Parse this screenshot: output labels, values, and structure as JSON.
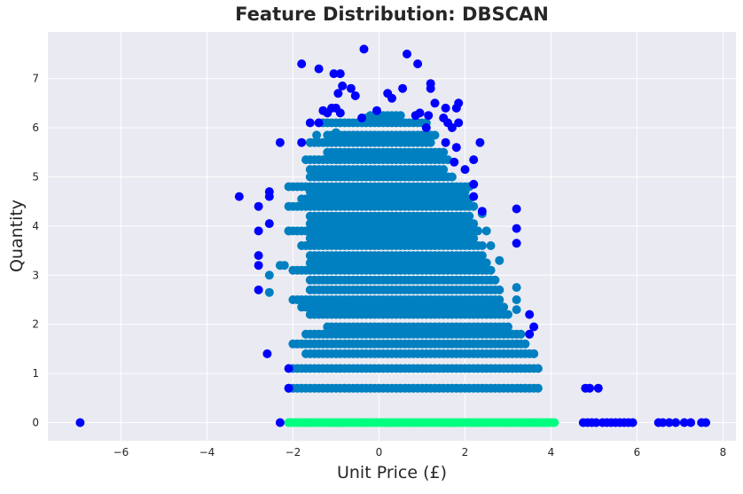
{
  "chart_data": {
    "type": "scatter",
    "title": "Feature Distribution: DBSCAN",
    "xlabel": "Unit Price (£)",
    "ylabel": "Quantity",
    "xlim": [
      -7.7,
      8.3
    ],
    "ylim": [
      -0.37,
      7.95
    ],
    "xticks": [
      -6,
      -4,
      -2,
      0,
      2,
      4,
      6,
      8
    ],
    "yticks": [
      0,
      1,
      2,
      3,
      4,
      5,
      6,
      7
    ],
    "grid": true,
    "background": "#EAEAF2",
    "legend": "none",
    "clusters": [
      {
        "color": "#0000FF",
        "points": [
          [
            -6.95,
            0
          ],
          [
            -2.3,
            0
          ],
          [
            4.75,
            0
          ],
          [
            4.85,
            0
          ],
          [
            4.95,
            0
          ],
          [
            5.05,
            0
          ],
          [
            5.2,
            0
          ],
          [
            5.3,
            0
          ],
          [
            5.4,
            0
          ],
          [
            5.5,
            0
          ],
          [
            5.6,
            0
          ],
          [
            5.7,
            0
          ],
          [
            5.8,
            0
          ],
          [
            5.9,
            0
          ],
          [
            6.5,
            0
          ],
          [
            6.6,
            0
          ],
          [
            6.75,
            0
          ],
          [
            6.9,
            0
          ],
          [
            7.1,
            0
          ],
          [
            7.25,
            0
          ],
          [
            7.5,
            0
          ],
          [
            7.6,
            0
          ],
          [
            4.8,
            0.7
          ],
          [
            4.9,
            0.7
          ],
          [
            5.1,
            0.7
          ],
          [
            -2.1,
            0.7
          ],
          [
            -2.1,
            1.1
          ],
          [
            -2.6,
            1.4
          ],
          [
            3.5,
            1.8
          ],
          [
            3.6,
            1.95
          ],
          [
            3.5,
            2.2
          ],
          [
            -2.8,
            2.7
          ],
          [
            -2.8,
            3.2
          ],
          [
            -2.8,
            3.4
          ],
          [
            -2.8,
            3.9
          ],
          [
            -2.55,
            4.05
          ],
          [
            -2.8,
            4.4
          ],
          [
            -3.25,
            4.6
          ],
          [
            -2.55,
            4.6
          ],
          [
            -2.55,
            4.7
          ],
          [
            -2.3,
            5.7
          ],
          [
            3.2,
            3.65
          ],
          [
            3.2,
            3.95
          ],
          [
            3.2,
            4.35
          ],
          [
            2.2,
            4.6
          ],
          [
            2.4,
            4.3
          ],
          [
            2.2,
            4.85
          ],
          [
            2.35,
            5.7
          ],
          [
            2.2,
            5.35
          ],
          [
            2.0,
            5.15
          ],
          [
            1.75,
            5.3
          ],
          [
            1.8,
            5.6
          ],
          [
            -1.8,
            5.7
          ],
          [
            -1.6,
            6.1
          ],
          [
            -1.4,
            6.1
          ],
          [
            -1.3,
            6.35
          ],
          [
            -1.2,
            6.3
          ],
          [
            -1.1,
            6.4
          ],
          [
            -1.0,
            6.4
          ],
          [
            -0.9,
            6.3
          ],
          [
            -0.95,
            6.7
          ],
          [
            -0.85,
            6.85
          ],
          [
            -0.9,
            7.1
          ],
          [
            -1.05,
            7.1
          ],
          [
            -1.4,
            7.2
          ],
          [
            -1.8,
            7.3
          ],
          [
            -0.65,
            6.8
          ],
          [
            -0.55,
            6.65
          ],
          [
            -0.4,
            6.2
          ],
          [
            -0.05,
            6.35
          ],
          [
            0.2,
            6.7
          ],
          [
            0.3,
            6.6
          ],
          [
            0.55,
            6.8
          ],
          [
            -0.35,
            7.6
          ],
          [
            0.65,
            7.5
          ],
          [
            0.9,
            7.3
          ],
          [
            0.85,
            6.25
          ],
          [
            0.95,
            6.3
          ],
          [
            1.1,
            6.0
          ],
          [
            1.15,
            6.25
          ],
          [
            1.2,
            6.8
          ],
          [
            1.2,
            6.9
          ],
          [
            1.3,
            6.5
          ],
          [
            1.5,
            6.2
          ],
          [
            1.55,
            6.4
          ],
          [
            1.6,
            6.1
          ],
          [
            1.7,
            6.0
          ],
          [
            1.8,
            6.4
          ],
          [
            1.85,
            6.5
          ],
          [
            1.85,
            6.1
          ],
          [
            1.55,
            5.7
          ]
        ]
      },
      {
        "color": "#0080C0",
        "rows": [
          {
            "y": 0.7,
            "from": -2.1,
            "to": 3.6,
            "step": 0.1
          },
          {
            "y": 1.1,
            "from": -2.0,
            "to": 3.6,
            "step": 0.1
          },
          {
            "y": 1.4,
            "from": -1.7,
            "to": 3.6,
            "step": 0.1
          },
          {
            "y": 1.6,
            "from": -2.0,
            "to": 3.4,
            "step": 0.1
          },
          {
            "y": 1.8,
            "from": -1.7,
            "to": 3.3,
            "step": 0.1
          },
          {
            "y": 1.95,
            "from": -1.2,
            "to": 3.0,
            "step": 0.1
          },
          {
            "y": 2.2,
            "from": -1.6,
            "to": 3.0,
            "step": 0.1
          },
          {
            "y": 2.35,
            "from": -1.8,
            "to": 2.9,
            "step": 0.1
          },
          {
            "y": 2.5,
            "from": -2.0,
            "to": 2.8,
            "step": 0.1
          },
          {
            "y": 2.7,
            "from": -1.6,
            "to": 2.8,
            "step": 0.1
          },
          {
            "y": 2.9,
            "from": -1.6,
            "to": 2.7,
            "step": 0.1
          },
          {
            "y": 3.1,
            "from": -2.0,
            "to": 2.6,
            "step": 0.1
          },
          {
            "y": 3.25,
            "from": -1.6,
            "to": 2.5,
            "step": 0.1
          },
          {
            "y": 3.4,
            "from": -1.6,
            "to": 2.4,
            "step": 0.1
          },
          {
            "y": 3.6,
            "from": -1.8,
            "to": 2.4,
            "step": 0.1
          },
          {
            "y": 3.75,
            "from": -1.6,
            "to": 2.2,
            "step": 0.1
          },
          {
            "y": 3.9,
            "from": -2.1,
            "to": 2.3,
            "step": 0.1
          },
          {
            "y": 4.05,
            "from": -1.6,
            "to": 2.2,
            "step": 0.1
          },
          {
            "y": 4.2,
            "from": -1.6,
            "to": 2.1,
            "step": 0.1
          },
          {
            "y": 4.4,
            "from": -2.1,
            "to": 2.2,
            "step": 0.1
          },
          {
            "y": 4.55,
            "from": -1.8,
            "to": 2.1,
            "step": 0.1
          },
          {
            "y": 4.7,
            "from": -1.6,
            "to": 2.0,
            "step": 0.1
          },
          {
            "y": 4.8,
            "from": -2.1,
            "to": 2.1,
            "step": 0.1
          },
          {
            "y": 5.0,
            "from": -1.6,
            "to": 1.7,
            "step": 0.1
          },
          {
            "y": 5.15,
            "from": -1.6,
            "to": 1.5,
            "step": 0.1
          },
          {
            "y": 5.35,
            "from": -1.7,
            "to": 1.6,
            "step": 0.1
          },
          {
            "y": 5.5,
            "from": -1.2,
            "to": 1.5,
            "step": 0.1
          },
          {
            "y": 5.7,
            "from": -1.6,
            "to": 1.2,
            "step": 0.1
          },
          {
            "y": 5.85,
            "from": -1.2,
            "to": 1.3,
            "step": 0.1
          },
          {
            "y": 6.1,
            "from": -1.3,
            "to": 1.1,
            "step": 0.1
          },
          {
            "y": 6.25,
            "from": -0.2,
            "to": 0.5,
            "step": 0.1
          }
        ],
        "points": [
          [
            -2.1,
            3.9
          ],
          [
            -2.3,
            3.2
          ],
          [
            -2.55,
            3.0
          ],
          [
            -2.55,
            2.65
          ],
          [
            -2.2,
            3.2
          ],
          [
            3.2,
            2.5
          ],
          [
            3.2,
            2.3
          ],
          [
            3.2,
            2.75
          ],
          [
            3.6,
            1.4
          ],
          [
            3.7,
            1.1
          ],
          [
            3.7,
            0.7
          ],
          [
            2.8,
            3.3
          ],
          [
            2.5,
            3.9
          ],
          [
            2.4,
            4.25
          ],
          [
            2.6,
            3.6
          ],
          [
            -0.3,
            6.2
          ],
          [
            0.4,
            6.15
          ],
          [
            -1.45,
            5.85
          ],
          [
            -1.0,
            5.9
          ]
        ]
      },
      {
        "color": "#00FF80",
        "rows": [
          {
            "y": 0,
            "from": -2.1,
            "to": 4.1,
            "step": 0.06
          }
        ]
      }
    ]
  }
}
